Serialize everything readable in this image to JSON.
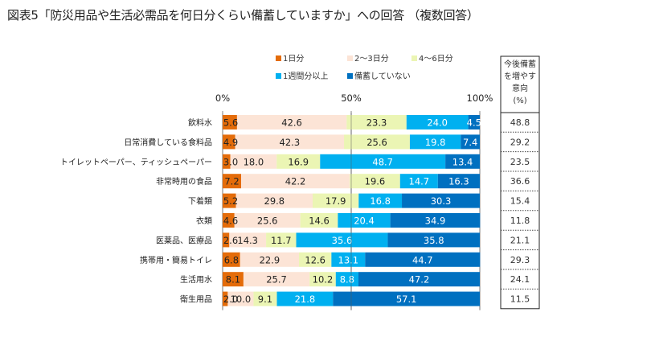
{
  "title": "図表5「防災用品や生活必需品を何日分くらい備蓄していますか」への回答 （複数回答）",
  "chart_data": {
    "type": "bar",
    "orientation": "horizontal",
    "stacked": true,
    "title": "図表5「防災用品や生活必需品を何日分くらい備蓄していますか」への回答 （複数回答）",
    "xlabel": "",
    "ylabel": "",
    "xlim": [
      0,
      100
    ],
    "x_ticks": [
      "0%",
      "50%",
      "100%"
    ],
    "legend_position": "top",
    "categories": [
      "飲料水",
      "日常消費している食料品",
      "トイレットペーパー、ティッシュペーパー",
      "非常時用の食品",
      "下着類",
      "衣類",
      "医薬品、医療品",
      "携帯用・簡易トイレ",
      "生活用水",
      "衛生用品"
    ],
    "series": [
      {
        "name": "1日分",
        "color": "#E46C0A",
        "label_color": "dark",
        "values": [
          5.6,
          4.9,
          3.0,
          7.2,
          5.2,
          4.6,
          2.6,
          6.8,
          8.1,
          2.0
        ]
      },
      {
        "name": "2～3日分",
        "color": "#FCE4D6",
        "label_color": "dark",
        "values": [
          42.6,
          42.3,
          18.0,
          42.2,
          29.8,
          25.6,
          14.3,
          22.9,
          25.7,
          10.0
        ]
      },
      {
        "name": "4～6日分",
        "color": "#EBF5B4",
        "label_color": "dark",
        "values": [
          23.3,
          25.6,
          16.9,
          19.6,
          17.9,
          14.6,
          11.7,
          12.6,
          10.2,
          9.1
        ]
      },
      {
        "name": "1週間分以上",
        "color": "#00B0F0",
        "label_color": "light",
        "values": [
          24.0,
          19.8,
          48.7,
          14.7,
          16.8,
          20.4,
          35.6,
          13.1,
          8.8,
          21.8
        ]
      },
      {
        "name": "備蓄していない",
        "color": "#0070C0",
        "label_color": "light",
        "values": [
          4.5,
          7.4,
          13.4,
          16.3,
          30.3,
          34.9,
          35.8,
          44.7,
          47.2,
          57.1
        ]
      }
    ],
    "side_table": {
      "header": [
        "今後備蓄",
        "を増やす",
        "意向",
        "(%)"
      ],
      "values": [
        "48.8",
        "29.2",
        "23.5",
        "36.6",
        "15.4",
        "11.8",
        "21.1",
        "29.3",
        "24.1",
        "11.5"
      ]
    }
  }
}
